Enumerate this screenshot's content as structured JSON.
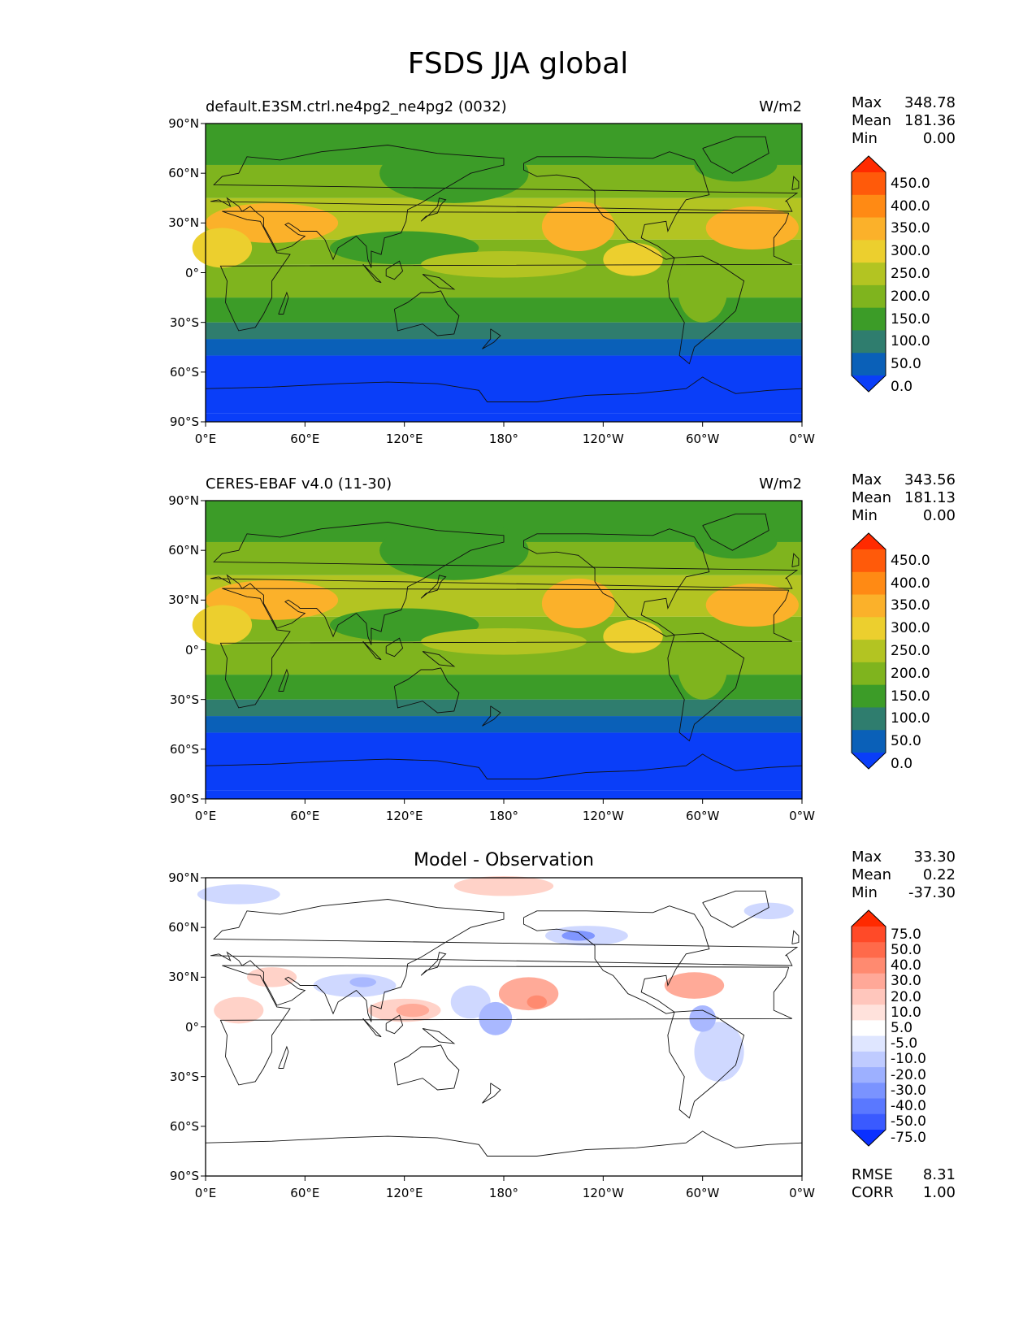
{
  "title": "FSDS JJA global",
  "axes": {
    "lat_labels": [
      "90°N",
      "60°N",
      "30°N",
      "0°",
      "30°S",
      "60°S",
      "90°S"
    ],
    "lon_labels": [
      "0°E",
      "60°E",
      "120°E",
      "180°",
      "120°W",
      "60°W",
      "0°W"
    ]
  },
  "panels": [
    {
      "title_left": "default.E3SM.ctrl.ne4pg2_ne4pg2 (0032)",
      "title_center": "",
      "units": "W/m2",
      "stats": [
        {
          "label": "Max",
          "value": "348.78"
        },
        {
          "label": "Mean",
          "value": "181.36"
        },
        {
          "label": "Min",
          "value": "0.00"
        }
      ],
      "colorbar_labels": [
        "450.0",
        "400.0",
        "350.0",
        "300.0",
        "250.0",
        "200.0",
        "150.0",
        "100.0",
        "50.0",
        "0.0"
      ],
      "colorbar_colors": [
        "#ff2a00",
        "#ff5a0a",
        "#ff8a14",
        "#fbb12a",
        "#eccf2e",
        "#b3c422",
        "#7fb41e",
        "#3c9c28",
        "#2f7d6e",
        "#0a60b8",
        "#0a3ef8"
      ]
    },
    {
      "title_left": "CERES-EBAF v4.0 (11-30)",
      "title_center": "",
      "units": "W/m2",
      "stats": [
        {
          "label": "Max",
          "value": "343.56"
        },
        {
          "label": "Mean",
          "value": "181.13"
        },
        {
          "label": "Min",
          "value": "0.00"
        }
      ],
      "colorbar_labels": [
        "450.0",
        "400.0",
        "350.0",
        "300.0",
        "250.0",
        "200.0",
        "150.0",
        "100.0",
        "50.0",
        "0.0"
      ],
      "colorbar_colors": [
        "#ff2a00",
        "#ff5a0a",
        "#ff8a14",
        "#fbb12a",
        "#eccf2e",
        "#b3c422",
        "#7fb41e",
        "#3c9c28",
        "#2f7d6e",
        "#0a60b8",
        "#0a3ef8"
      ]
    },
    {
      "title_left": "",
      "title_center": "Model - Observation",
      "units": "",
      "stats": [
        {
          "label": "Max",
          "value": "33.30"
        },
        {
          "label": "Mean",
          "value": "0.22"
        },
        {
          "label": "Min",
          "value": "-37.30"
        }
      ],
      "colorbar_labels": [
        "75.0",
        "50.0",
        "40.0",
        "30.0",
        "20.0",
        "10.0",
        "5.0",
        "-5.0",
        "-10.0",
        "-20.0",
        "-30.0",
        "-40.0",
        "-50.0",
        "-75.0"
      ],
      "colorbar_colors": [
        "#ff2a00",
        "#ff4a28",
        "#ff6a4a",
        "#ff8a70",
        "#ffa898",
        "#ffc6bc",
        "#ffe2dc",
        "#ffffff",
        "#dfe6ff",
        "#bfcbff",
        "#9db0ff",
        "#7a93ff",
        "#5a78ff",
        "#3a5aff",
        "#0a30ff"
      ],
      "footer_stats": [
        {
          "label": "RMSE",
          "value": "8.31"
        },
        {
          "label": "CORR",
          "value": "1.00"
        }
      ]
    }
  ],
  "chart_data": [
    {
      "type": "heatmap",
      "title": "default.E3SM.ctrl.ne4pg2_ne4pg2 (0032)",
      "units": "W/m2",
      "xlim": [
        0,
        360
      ],
      "ylim": [
        -90,
        90
      ],
      "levels": [
        0,
        50,
        100,
        150,
        200,
        250,
        300,
        350,
        400,
        450
      ],
      "stats": {
        "max": 348.78,
        "mean": 181.36,
        "min": 0.0
      },
      "zonal_bands": [
        {
          "lat_range": [
            -90,
            -85
          ],
          "value": 0
        },
        {
          "lat_range": [
            -85,
            -50
          ],
          "value": 25
        },
        {
          "lat_range": [
            -50,
            -40
          ],
          "value": 75
        },
        {
          "lat_range": [
            -40,
            -30
          ],
          "value": 125
        },
        {
          "lat_range": [
            -30,
            -15
          ],
          "value": 175
        },
        {
          "lat_range": [
            -15,
            5
          ],
          "value": 225
        },
        {
          "lat_range": [
            5,
            20
          ],
          "value": 225
        },
        {
          "lat_range": [
            20,
            45
          ],
          "value": 275
        },
        {
          "lat_range": [
            45,
            65
          ],
          "value": 225
        },
        {
          "lat_range": [
            65,
            90
          ],
          "value": 175
        }
      ]
    },
    {
      "type": "heatmap",
      "title": "CERES-EBAF v4.0 (11-30)",
      "units": "W/m2",
      "xlim": [
        0,
        360
      ],
      "ylim": [
        -90,
        90
      ],
      "levels": [
        0,
        50,
        100,
        150,
        200,
        250,
        300,
        350,
        400,
        450
      ],
      "stats": {
        "max": 343.56,
        "mean": 181.13,
        "min": 0.0
      },
      "zonal_bands": [
        {
          "lat_range": [
            -90,
            -85
          ],
          "value": 0
        },
        {
          "lat_range": [
            -85,
            -50
          ],
          "value": 25
        },
        {
          "lat_range": [
            -50,
            -40
          ],
          "value": 75
        },
        {
          "lat_range": [
            -40,
            -30
          ],
          "value": 125
        },
        {
          "lat_range": [
            -30,
            -15
          ],
          "value": 175
        },
        {
          "lat_range": [
            -15,
            5
          ],
          "value": 225
        },
        {
          "lat_range": [
            5,
            20
          ],
          "value": 225
        },
        {
          "lat_range": [
            20,
            45
          ],
          "value": 275
        },
        {
          "lat_range": [
            45,
            65
          ],
          "value": 225
        },
        {
          "lat_range": [
            65,
            90
          ],
          "value": 175
        }
      ]
    },
    {
      "type": "heatmap",
      "title": "Model - Observation",
      "xlim": [
        0,
        360
      ],
      "ylim": [
        -90,
        90
      ],
      "levels": [
        -75,
        -50,
        -40,
        -30,
        -20,
        -10,
        -5,
        5,
        10,
        20,
        30,
        40,
        50,
        75
      ],
      "stats": {
        "max": 33.3,
        "mean": 0.22,
        "min": -37.3,
        "rmse": 8.31,
        "corr": 1.0
      }
    }
  ]
}
